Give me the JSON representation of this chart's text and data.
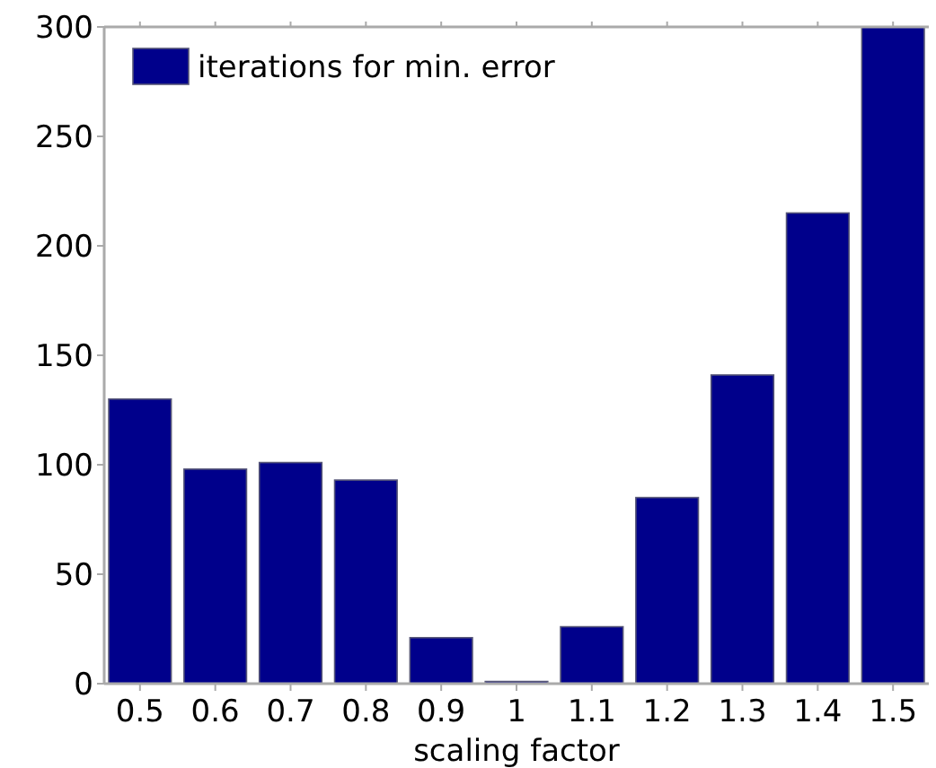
{
  "chart_data": {
    "type": "bar",
    "xlabel": "scaling factor",
    "categories": [
      "0.5",
      "0.6",
      "0.7",
      "0.8",
      "0.9",
      "1",
      "1.1",
      "1.2",
      "1.3",
      "1.4",
      "1.5"
    ],
    "series": [
      {
        "name": "iterations for min. error",
        "color": "#00008b",
        "values": [
          130,
          98,
          101,
          93,
          21,
          1,
          26,
          85,
          141,
          215,
          300
        ]
      }
    ],
    "ylim": [
      0,
      300
    ],
    "yticks": [
      0,
      50,
      100,
      150,
      200,
      250,
      300
    ],
    "grid": false,
    "legend": "top left"
  }
}
